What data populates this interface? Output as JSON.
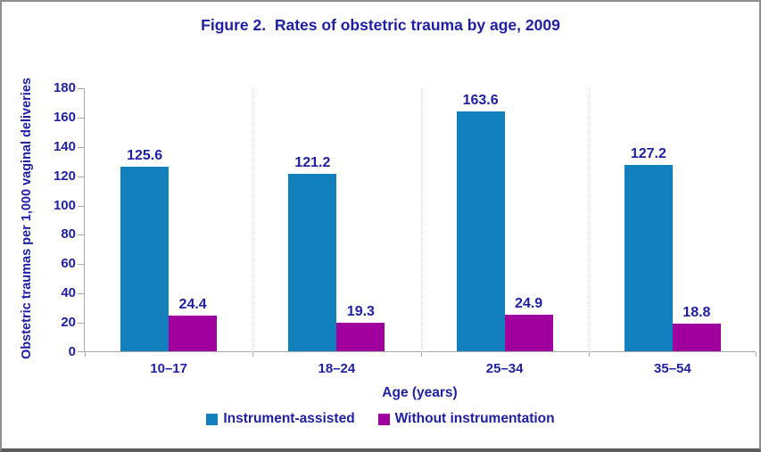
{
  "chart_data": {
    "type": "bar",
    "title": "Figure 2.  Rates of obstetric trauma by age, 2009",
    "xlabel": "Age (years)",
    "ylabel": "Obstetric traumas per 1,000 vaginal deliveries",
    "categories": [
      "10–17",
      "18–24",
      "25–34",
      "35–54"
    ],
    "series": [
      {
        "name": "Instrument-assisted",
        "color": "#1380BE",
        "values": [
          125.6,
          121.2,
          163.6,
          127.2
        ]
      },
      {
        "name": "Without instrumentation",
        "color": "#A0009E",
        "values": [
          24.4,
          19.3,
          24.9,
          18.8
        ]
      }
    ],
    "ylim": [
      0,
      180
    ],
    "yticks": [
      0,
      20,
      40,
      60,
      80,
      100,
      120,
      140,
      160,
      180
    ],
    "grid": "faint dotted vertical separators between categories",
    "legend_position": "bottom",
    "value_labels": true,
    "text_color": "#1F1FA6",
    "axis_color": "#A9A9A9"
  }
}
